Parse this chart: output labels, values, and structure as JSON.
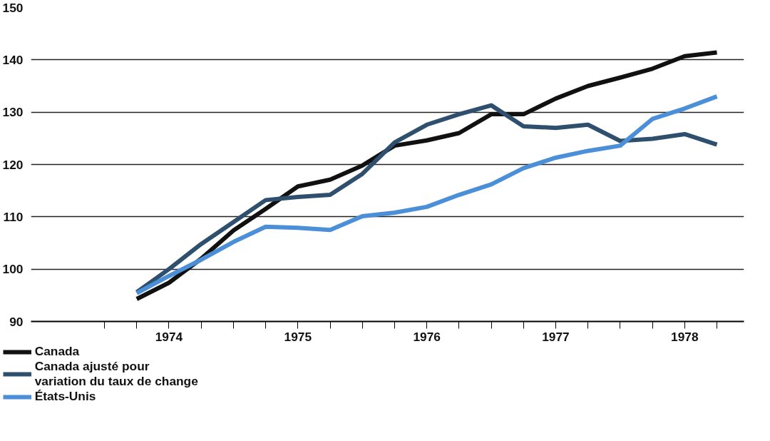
{
  "chart_data": {
    "type": "line",
    "x": [
      1974.25,
      1974.5,
      1974.75,
      1975.0,
      1975.25,
      1975.5,
      1975.75,
      1976.0,
      1976.25,
      1976.5,
      1976.75,
      1977.0,
      1977.25,
      1977.5,
      1977.75,
      1978.0,
      1978.25,
      1978.5,
      1978.75
    ],
    "series": [
      {
        "name": "Canada",
        "color": "#111111",
        "values": [
          94.3,
          97.4,
          102,
          107.4,
          111.5,
          115.8,
          117.1,
          119.8,
          123.6,
          124.6,
          126,
          129.6,
          129.6,
          132.6,
          135,
          136.6,
          138.3,
          140.7,
          141.4
        ]
      },
      {
        "name": "Canada ajusté pour\nvariation du taux de change",
        "color": "#2e4f6e",
        "values": [
          95.6,
          100,
          104.8,
          109,
          113.2,
          113.8,
          114.2,
          118.2,
          124.2,
          127.6,
          129.6,
          131.3,
          127.3,
          127,
          127.6,
          124.5,
          124.9,
          125.8,
          123.8
        ]
      },
      {
        "name": "États-Unis",
        "color": "#4a8fd8",
        "values": [
          95.4,
          98.7,
          101.8,
          105.2,
          108.1,
          107.9,
          107.5,
          110.1,
          110.8,
          111.9,
          114.2,
          116.2,
          119.3,
          121.3,
          122.6,
          123.6,
          128.7,
          130.7,
          133
        ]
      }
    ],
    "xlim": [
      1973.43,
      1978.96
    ],
    "ylim": [
      90,
      150
    ],
    "xticks": [
      {
        "value": 1974.0,
        "label": null
      },
      {
        "value": 1974.25,
        "label": null
      },
      {
        "value": 1974.5,
        "label": "1974"
      },
      {
        "value": 1974.75,
        "label": null
      },
      {
        "value": 1975.0,
        "label": null
      },
      {
        "value": 1975.25,
        "label": null
      },
      {
        "value": 1975.5,
        "label": "1975"
      },
      {
        "value": 1975.75,
        "label": null
      },
      {
        "value": 1976.0,
        "label": null
      },
      {
        "value": 1976.25,
        "label": null
      },
      {
        "value": 1976.5,
        "label": "1976"
      },
      {
        "value": 1976.75,
        "label": null
      },
      {
        "value": 1977.0,
        "label": null
      },
      {
        "value": 1977.25,
        "label": null
      },
      {
        "value": 1977.5,
        "label": "1977"
      },
      {
        "value": 1977.75,
        "label": null
      },
      {
        "value": 1978.0,
        "label": null
      },
      {
        "value": 1978.25,
        "label": null
      },
      {
        "value": 1978.5,
        "label": "1978"
      },
      {
        "value": 1978.75,
        "label": null
      }
    ],
    "yticks": [
      90,
      100,
      110,
      120,
      130,
      140,
      150
    ],
    "grid": "y",
    "legend": "bottom left",
    "marker": "none",
    "line_style": "solid"
  }
}
